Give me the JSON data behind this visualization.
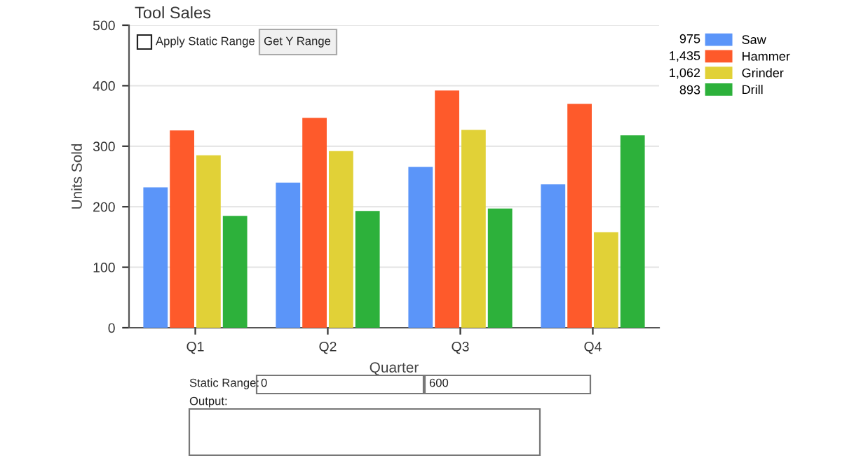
{
  "chart_data": {
    "type": "bar",
    "title": "Tool Sales",
    "xlabel": "Quarter",
    "ylabel": "Units Sold",
    "categories": [
      "Q1",
      "Q2",
      "Q3",
      "Q4"
    ],
    "series": [
      {
        "name": "Saw",
        "color": "#5b95f9",
        "values": [
          232,
          240,
          266,
          237
        ]
      },
      {
        "name": "Hammer",
        "color": "#fe5a2b",
        "values": [
          326,
          347,
          392,
          370
        ]
      },
      {
        "name": "Grinder",
        "color": "#e1d137",
        "values": [
          285,
          292,
          327,
          158
        ]
      },
      {
        "name": "Drill",
        "color": "#2db13b",
        "values": [
          185,
          193,
          197,
          318
        ]
      }
    ],
    "ylim": [
      0,
      500
    ],
    "yticks": [
      0,
      100,
      200,
      300,
      400,
      500
    ],
    "grid": "y",
    "legend": "right",
    "annotations": [
      "975",
      "1,435",
      "1,062",
      "893",
      "Apply Static Range",
      "Get Y Range",
      "Static Range:",
      "0",
      "600",
      "Output:"
    ]
  }
}
